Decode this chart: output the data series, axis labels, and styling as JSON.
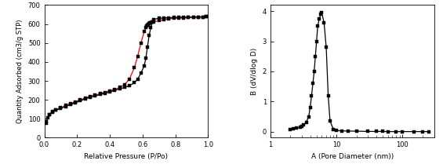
{
  "left": {
    "xlabel": "Relative Pressure (P/Po)",
    "ylabel": "Quantity Adsorbed (cm3/g STP)",
    "ylim": [
      0,
      700
    ],
    "xlim": [
      0.0,
      1.0
    ],
    "xticks": [
      0.0,
      0.2,
      0.4,
      0.6,
      0.8,
      1.0
    ],
    "yticks": [
      0,
      100,
      200,
      300,
      400,
      500,
      600,
      700
    ],
    "adsorption_x": [
      0.01,
      0.02,
      0.03,
      0.05,
      0.07,
      0.1,
      0.13,
      0.16,
      0.19,
      0.22,
      0.25,
      0.28,
      0.31,
      0.34,
      0.37,
      0.4,
      0.43,
      0.46,
      0.49,
      0.52,
      0.55,
      0.57,
      0.59,
      0.61,
      0.62,
      0.63,
      0.64,
      0.65,
      0.66,
      0.67,
      0.7,
      0.73,
      0.76,
      0.79,
      0.82,
      0.85,
      0.88,
      0.91,
      0.94,
      0.97,
      0.99
    ],
    "adsorption_y": [
      75,
      105,
      120,
      135,
      145,
      155,
      165,
      175,
      185,
      195,
      205,
      215,
      220,
      228,
      235,
      242,
      250,
      258,
      265,
      275,
      290,
      310,
      340,
      380,
      420,
      480,
      540,
      580,
      610,
      625,
      630,
      632,
      633,
      634,
      635,
      635,
      636,
      636,
      637,
      637,
      638
    ],
    "desorption_x": [
      0.99,
      0.97,
      0.94,
      0.91,
      0.88,
      0.85,
      0.82,
      0.79,
      0.76,
      0.73,
      0.7,
      0.67,
      0.66,
      0.65,
      0.645,
      0.64,
      0.635,
      0.63,
      0.625,
      0.62,
      0.61,
      0.59,
      0.57,
      0.55,
      0.52,
      0.49,
      0.46,
      0.43,
      0.4,
      0.37,
      0.34,
      0.31,
      0.28,
      0.25,
      0.22,
      0.19,
      0.16,
      0.13,
      0.1,
      0.07,
      0.05,
      0.03,
      0.01
    ],
    "desorption_y": [
      638,
      637,
      636,
      635,
      634,
      633,
      632,
      630,
      627,
      622,
      617,
      612,
      610,
      608,
      606,
      603,
      600,
      595,
      590,
      580,
      560,
      500,
      430,
      370,
      310,
      280,
      265,
      255,
      248,
      240,
      232,
      225,
      218,
      210,
      200,
      190,
      180,
      170,
      158,
      148,
      138,
      122,
      85
    ],
    "adsorption_color": "#000000",
    "desorption_color": "#ff0000"
  },
  "right": {
    "xlabel": "A (Pore Diameter (nm))",
    "ylabel": "B (dV/dlog D)",
    "ylim": [
      -0.2,
      4.2
    ],
    "xlim_log": [
      1,
      300
    ],
    "yticks": [
      0,
      1,
      2,
      3,
      4
    ],
    "pore_x": [
      2.0,
      2.2,
      2.5,
      2.8,
      3.0,
      3.2,
      3.5,
      3.8,
      4.0,
      4.2,
      4.4,
      4.6,
      4.8,
      5.0,
      5.2,
      5.5,
      5.8,
      6.0,
      6.5,
      7.0,
      7.5,
      8.0,
      9.0,
      10.0,
      12.0,
      15.0,
      20.0,
      30.0,
      40.0,
      50.0,
      60.0,
      80.0,
      100.0,
      150.0,
      200.0,
      250.0
    ],
    "pore_y": [
      0.08,
      0.1,
      0.12,
      0.15,
      0.18,
      0.22,
      0.32,
      0.5,
      0.8,
      1.2,
      1.6,
      2.0,
      2.5,
      3.0,
      3.5,
      3.75,
      3.9,
      3.95,
      3.6,
      2.8,
      1.2,
      0.35,
      0.08,
      0.04,
      0.03,
      0.02,
      0.02,
      0.01,
      0.01,
      0.01,
      0.005,
      0.005,
      0.005,
      0.005,
      0.005,
      0.005
    ],
    "line_color": "#000000",
    "marker_color": "#000000"
  }
}
